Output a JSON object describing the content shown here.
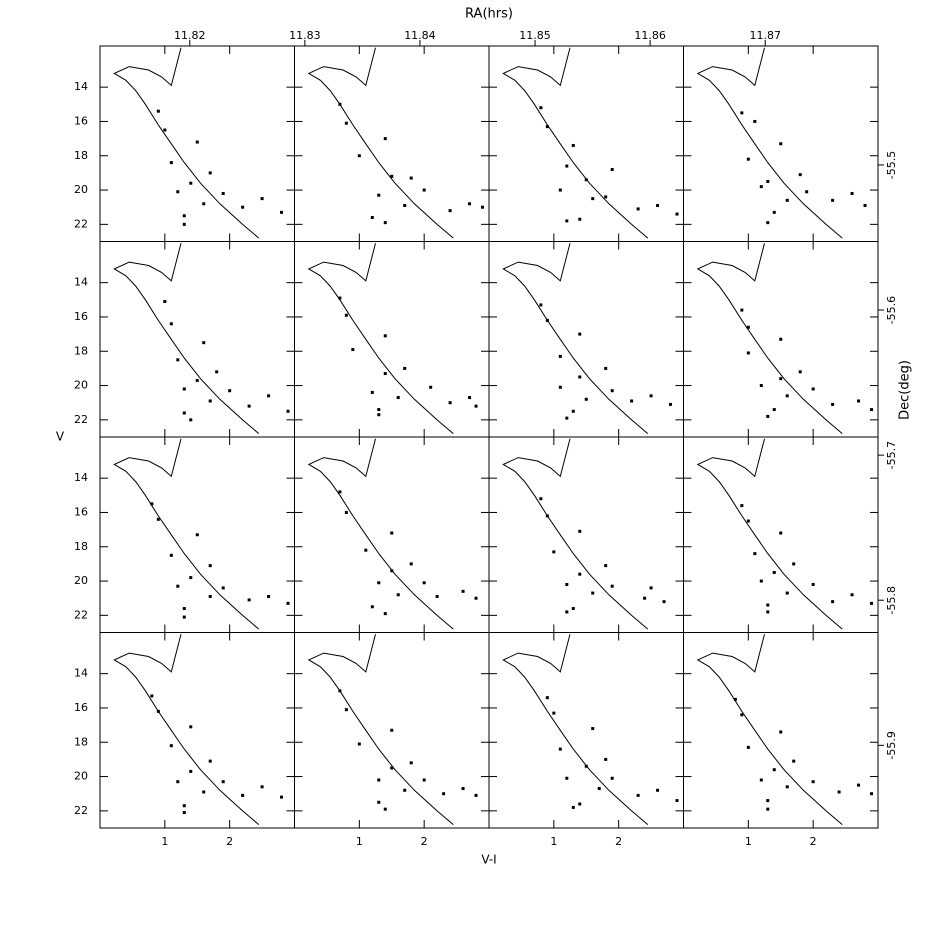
{
  "chart_data": {
    "type": "scatter-grid",
    "xlabel": "V-I",
    "ylabel": "V",
    "xlim": [
      0,
      3
    ],
    "ylim": [
      23,
      11.6
    ],
    "xticks": [
      1,
      2
    ],
    "yticks": [
      14,
      16,
      18,
      20,
      22
    ],
    "color": "#000000",
    "top_axis": {
      "label": "RA(hrs)",
      "lim": [
        11.8122,
        11.8798
      ],
      "ticks": [
        11.82,
        11.83,
        11.84,
        11.85,
        11.86,
        11.87
      ]
    },
    "right_axis": {
      "label": "Dec(deg)",
      "lim": [
        -55.957,
        -55.418
      ],
      "ticks": [
        -55.5,
        -55.6,
        -55.7,
        -55.8,
        -55.9
      ]
    },
    "isochrone": {
      "x": [
        1.25,
        1.1,
        0.95,
        0.75,
        0.45,
        0.22,
        0.4,
        0.55,
        0.7,
        0.9,
        1.1,
        1.3,
        1.55,
        1.85,
        2.2,
        2.45
      ],
      "y": [
        11.7,
        13.9,
        13.4,
        13.0,
        12.8,
        13.2,
        13.6,
        14.2,
        15.0,
        16.2,
        17.3,
        18.4,
        19.6,
        20.8,
        22.0,
        22.8
      ]
    },
    "panels": [
      {
        "x": [
          1.2,
          1.4,
          1.1,
          1.6,
          1.3,
          1.9,
          2.2,
          1.5,
          1.0,
          1.7,
          2.5,
          1.3,
          0.9,
          2.8
        ],
        "y": [
          20.1,
          19.6,
          18.4,
          20.8,
          21.5,
          20.2,
          21.0,
          17.2,
          16.5,
          19.0,
          20.5,
          22.0,
          15.4,
          21.3
        ]
      },
      {
        "x": [
          1.3,
          1.5,
          1.0,
          1.7,
          1.2,
          2.0,
          2.4,
          1.4,
          0.8,
          1.8,
          2.7,
          1.4,
          0.7,
          2.9
        ],
        "y": [
          20.3,
          19.2,
          18.0,
          20.9,
          21.6,
          20.0,
          21.2,
          17.0,
          16.1,
          19.3,
          20.8,
          21.9,
          15.0,
          21.0
        ]
      },
      {
        "x": [
          1.1,
          1.5,
          1.2,
          1.6,
          1.4,
          1.8,
          2.3,
          1.3,
          0.9,
          1.9,
          2.6,
          1.2,
          0.8,
          2.9
        ],
        "y": [
          20.0,
          19.4,
          18.6,
          20.5,
          21.7,
          20.4,
          21.1,
          17.4,
          16.3,
          18.8,
          20.9,
          21.8,
          15.2,
          21.4
        ]
      },
      {
        "x": [
          1.2,
          1.3,
          1.0,
          1.6,
          1.4,
          1.9,
          2.3,
          1.5,
          1.1,
          1.8,
          2.6,
          1.3,
          0.9,
          2.8
        ],
        "y": [
          19.8,
          19.5,
          18.2,
          20.6,
          21.3,
          20.1,
          20.6,
          17.3,
          16.0,
          19.1,
          20.2,
          21.9,
          15.5,
          20.9
        ]
      },
      {
        "x": [
          1.3,
          1.5,
          1.2,
          1.7,
          1.3,
          2.0,
          2.3,
          1.6,
          1.1,
          1.8,
          2.6,
          1.4,
          1.0,
          2.9
        ],
        "y": [
          20.2,
          19.7,
          18.5,
          20.9,
          21.6,
          20.3,
          21.2,
          17.5,
          16.4,
          19.2,
          20.6,
          22.0,
          15.1,
          21.5
        ]
      },
      {
        "x": [
          1.2,
          1.4,
          0.9,
          1.6,
          1.3,
          2.1,
          2.4,
          1.4,
          0.8,
          1.7,
          2.7,
          1.3,
          0.7,
          2.8
        ],
        "y": [
          20.4,
          19.3,
          17.9,
          20.7,
          21.4,
          20.1,
          21.0,
          17.1,
          15.9,
          19.0,
          20.7,
          21.7,
          14.9,
          21.2
        ]
      },
      {
        "x": [
          1.1,
          1.4,
          1.1,
          1.5,
          1.3,
          1.9,
          2.2,
          1.4,
          0.9,
          1.8,
          2.5,
          1.2,
          0.8,
          2.8
        ],
        "y": [
          20.1,
          19.5,
          18.3,
          20.8,
          21.5,
          20.3,
          20.9,
          17.0,
          16.2,
          19.0,
          20.6,
          21.9,
          15.3,
          21.1
        ]
      },
      {
        "x": [
          1.2,
          1.5,
          1.0,
          1.6,
          1.4,
          2.0,
          2.3,
          1.5,
          1.0,
          1.8,
          2.7,
          1.3,
          0.9,
          2.9
        ],
        "y": [
          20.0,
          19.6,
          18.1,
          20.6,
          21.4,
          20.2,
          21.1,
          17.3,
          16.6,
          19.2,
          20.9,
          21.8,
          15.6,
          21.4
        ]
      },
      {
        "x": [
          1.2,
          1.4,
          1.1,
          1.7,
          1.3,
          1.9,
          2.3,
          1.5,
          0.9,
          1.7,
          2.6,
          1.3,
          0.8,
          2.9
        ],
        "y": [
          20.3,
          19.8,
          18.5,
          20.9,
          21.6,
          20.4,
          21.1,
          17.3,
          16.4,
          19.1,
          20.9,
          22.1,
          15.5,
          21.3
        ]
      },
      {
        "x": [
          1.3,
          1.5,
          1.1,
          1.6,
          1.2,
          2.0,
          2.2,
          1.5,
          0.8,
          1.8,
          2.6,
          1.4,
          0.7,
          2.8
        ],
        "y": [
          20.1,
          19.4,
          18.2,
          20.8,
          21.5,
          20.1,
          20.9,
          17.2,
          16.0,
          19.0,
          20.6,
          21.9,
          14.8,
          21.0
        ]
      },
      {
        "x": [
          1.2,
          1.4,
          1.0,
          1.6,
          1.3,
          1.9,
          2.4,
          1.4,
          0.9,
          1.8,
          2.5,
          1.2,
          0.8,
          2.7
        ],
        "y": [
          20.2,
          19.6,
          18.3,
          20.7,
          21.6,
          20.3,
          21.0,
          17.1,
          16.2,
          19.1,
          20.4,
          21.8,
          15.2,
          21.2
        ]
      },
      {
        "x": [
          1.2,
          1.4,
          1.1,
          1.6,
          1.3,
          2.0,
          2.3,
          1.5,
          1.0,
          1.7,
          2.6,
          1.3,
          0.9,
          2.9
        ],
        "y": [
          20.0,
          19.5,
          18.4,
          20.7,
          21.4,
          20.2,
          21.2,
          17.2,
          16.5,
          19.0,
          20.8,
          21.8,
          15.6,
          21.3
        ]
      },
      {
        "x": [
          1.2,
          1.4,
          1.1,
          1.6,
          1.3,
          1.9,
          2.2,
          1.4,
          0.9,
          1.7,
          2.5,
          1.3,
          0.8,
          2.8
        ],
        "y": [
          20.3,
          19.7,
          18.2,
          20.9,
          21.7,
          20.3,
          21.1,
          17.1,
          16.2,
          19.1,
          20.6,
          22.1,
          15.3,
          21.2
        ]
      },
      {
        "x": [
          1.3,
          1.5,
          1.0,
          1.7,
          1.3,
          2.0,
          2.3,
          1.5,
          0.8,
          1.8,
          2.6,
          1.4,
          0.7,
          2.8
        ],
        "y": [
          20.2,
          19.5,
          18.1,
          20.8,
          21.5,
          20.2,
          21.0,
          17.3,
          16.1,
          19.2,
          20.7,
          21.9,
          15.0,
          21.1
        ]
      },
      {
        "x": [
          1.2,
          1.5,
          1.1,
          1.7,
          1.4,
          1.9,
          2.3,
          1.6,
          1.0,
          1.8,
          2.6,
          1.3,
          0.9,
          2.9
        ],
        "y": [
          20.1,
          19.4,
          18.4,
          20.7,
          21.6,
          20.1,
          21.1,
          17.2,
          16.3,
          19.0,
          20.8,
          21.8,
          15.4,
          21.4
        ]
      },
      {
        "x": [
          1.2,
          1.4,
          1.0,
          1.6,
          1.3,
          2.0,
          2.4,
          1.5,
          0.9,
          1.7,
          2.7,
          1.3,
          0.8,
          2.9
        ],
        "y": [
          20.2,
          19.6,
          18.3,
          20.6,
          21.4,
          20.3,
          20.9,
          17.4,
          16.4,
          19.1,
          20.5,
          21.9,
          15.5,
          21.0
        ]
      }
    ]
  }
}
